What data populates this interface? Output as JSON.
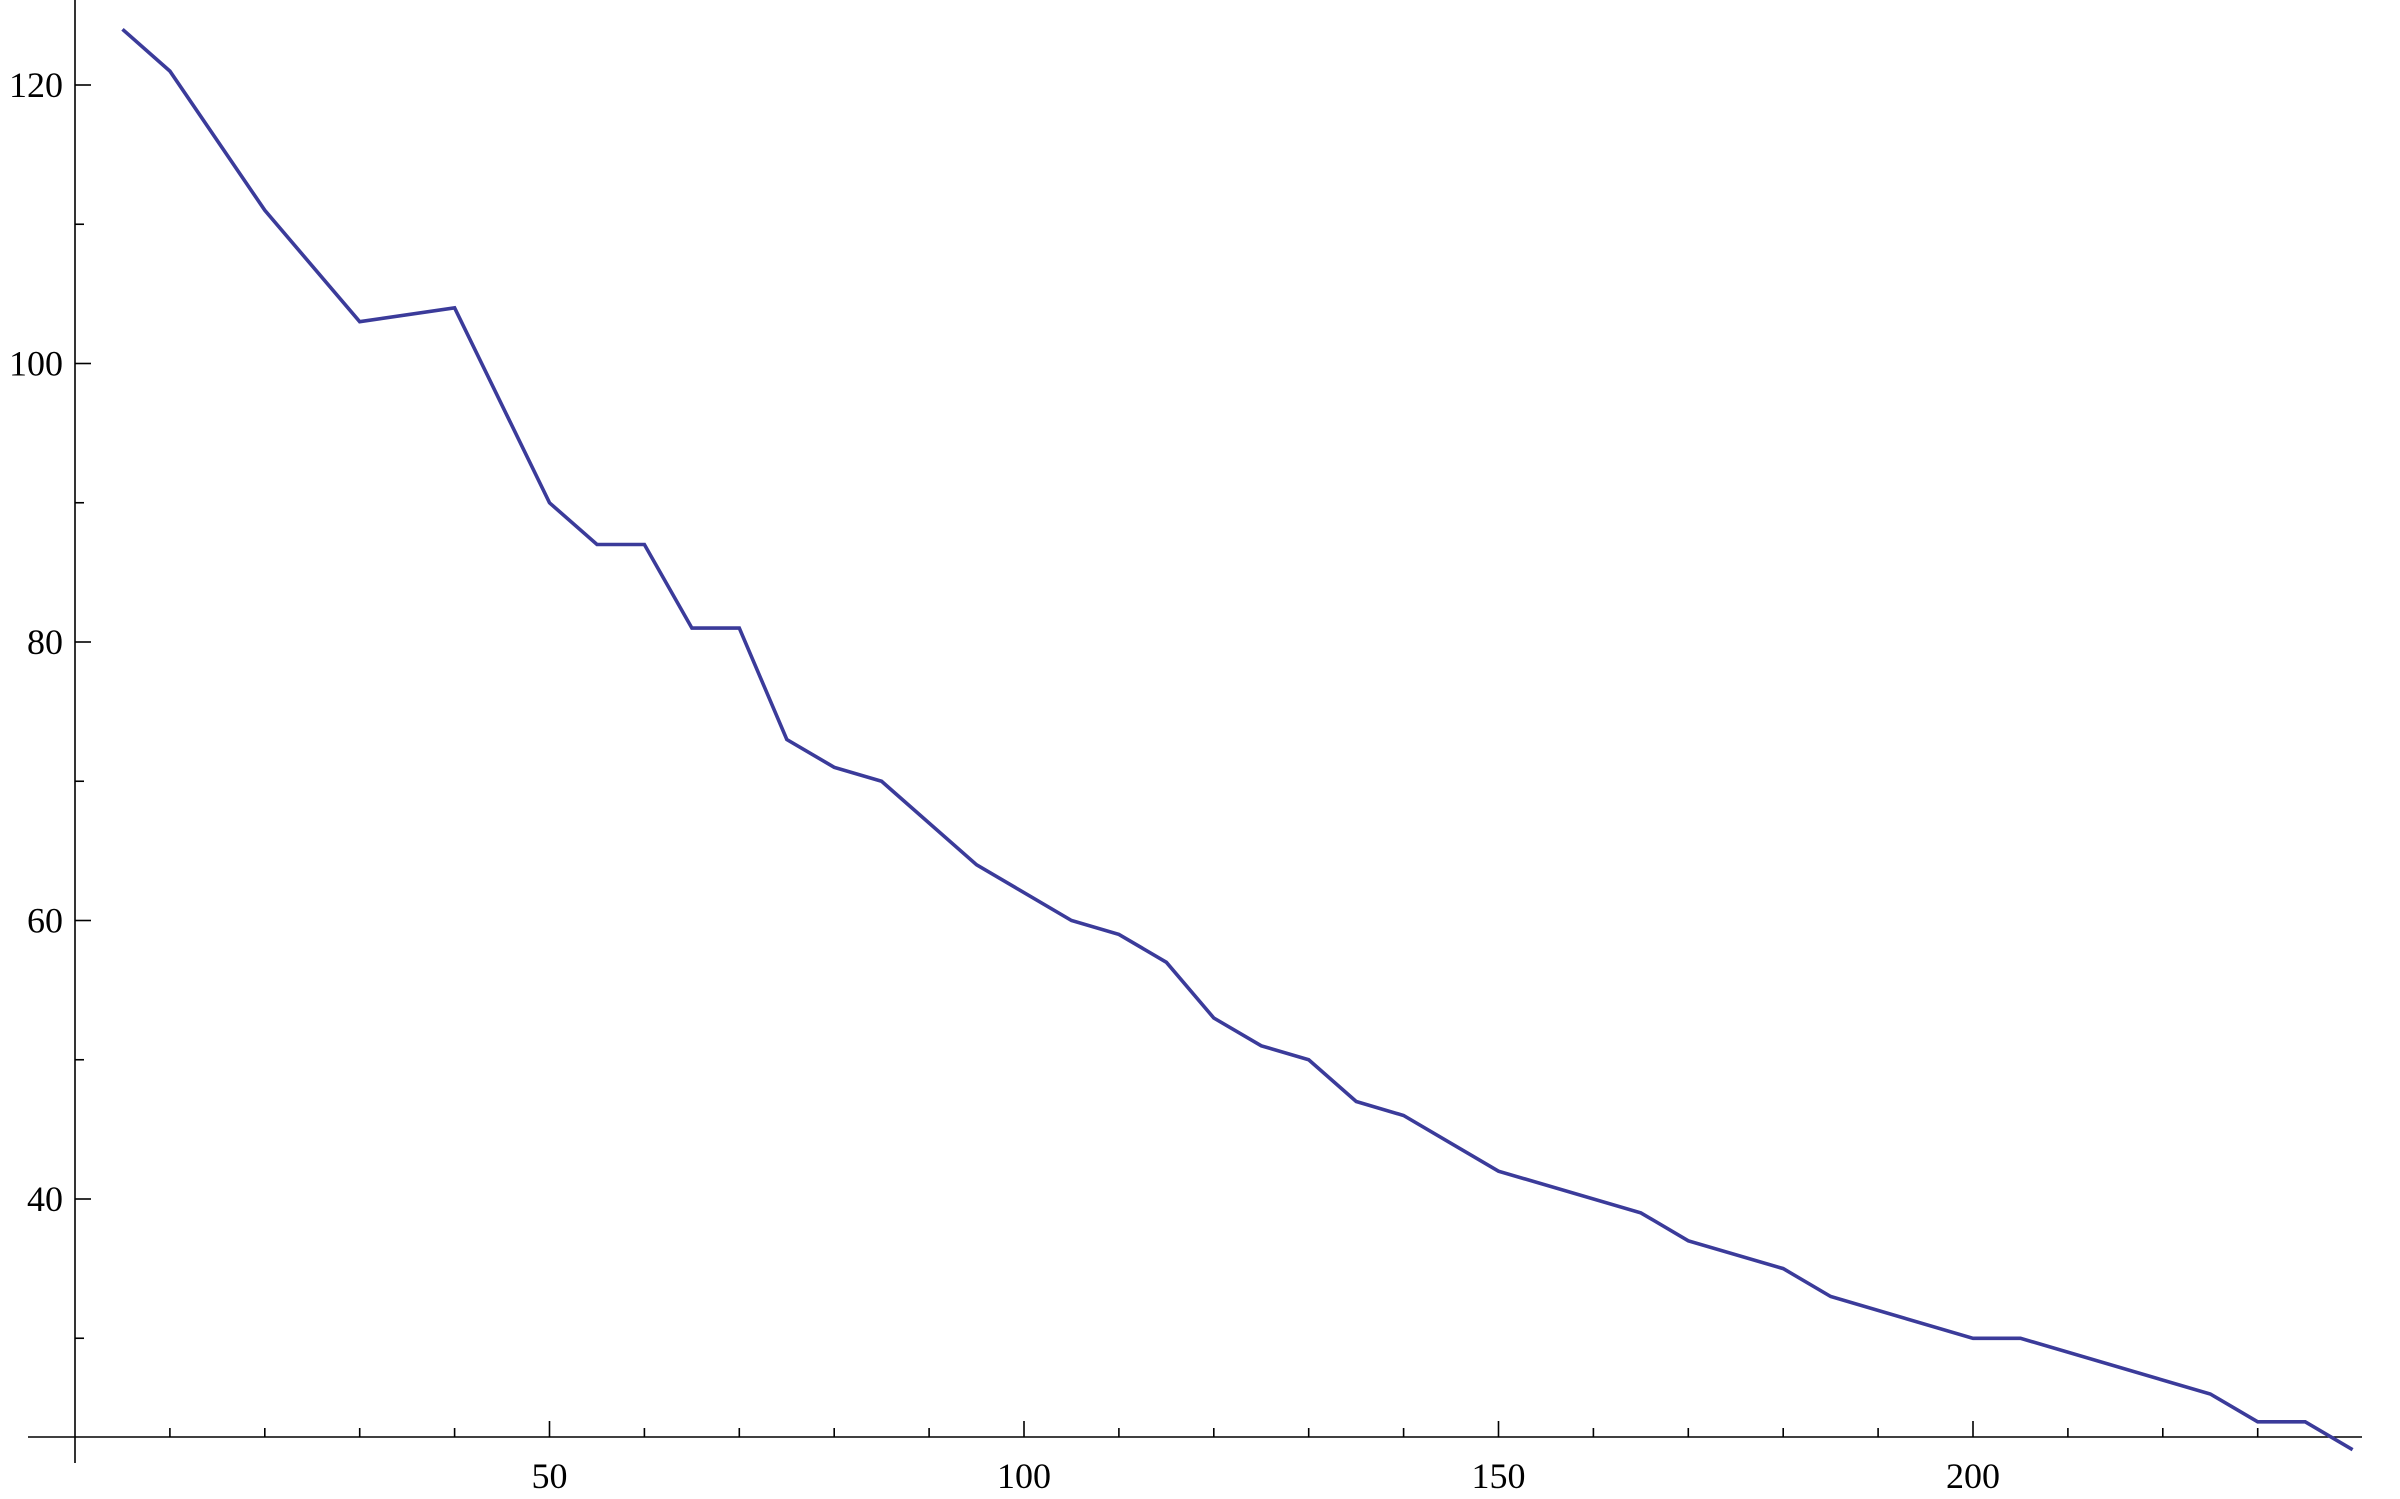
{
  "chart_data": {
    "type": "line",
    "title": "",
    "xlabel": "",
    "ylabel": "",
    "xlim": [
      0,
      240
    ],
    "ylim": [
      22,
      126
    ],
    "x_ticks": [
      50,
      100,
      150,
      200
    ],
    "y_ticks": [
      40,
      60,
      80,
      100,
      120
    ],
    "x_minor_ticks": [
      10,
      20,
      30,
      40,
      60,
      70,
      80,
      90,
      110,
      120,
      130,
      140,
      160,
      170,
      180,
      190,
      210,
      220,
      230
    ],
    "y_minor_ticks": [
      30,
      50,
      70,
      90,
      110
    ],
    "grid": false,
    "series": [
      {
        "name": "",
        "color": "#3b3b9a",
        "x": [
          5,
          10,
          20,
          30,
          40,
          50,
          55,
          60,
          65,
          70,
          75,
          80,
          85,
          95,
          105,
          110,
          115,
          120,
          125,
          130,
          135,
          140,
          150,
          165,
          170,
          180,
          185,
          200,
          205,
          225,
          230,
          235,
          240
        ],
        "y": [
          124,
          121,
          111,
          103,
          104,
          90,
          87,
          87,
          81,
          81,
          73,
          71,
          70,
          64,
          60,
          59,
          57,
          53,
          51,
          50,
          47,
          46,
          42,
          39,
          37,
          35,
          33,
          30,
          30,
          26,
          24,
          24,
          22
        ]
      }
    ]
  }
}
